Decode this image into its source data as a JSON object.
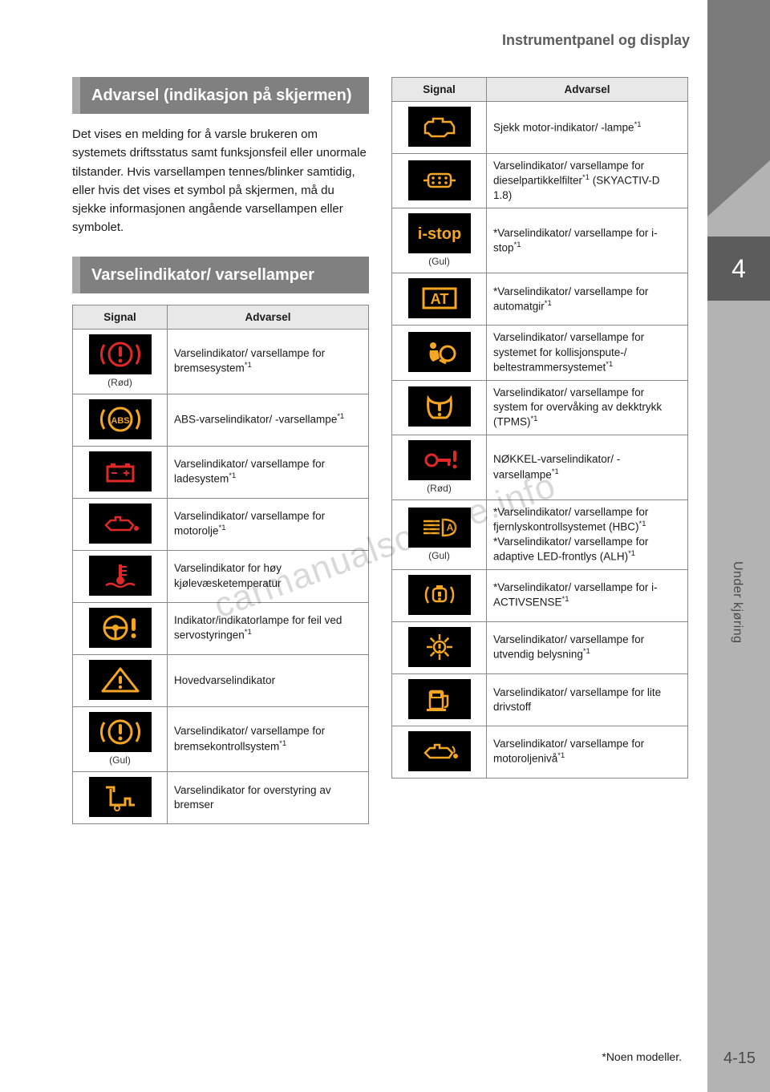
{
  "header": "Instrumentpanel og display",
  "chapter_tab": "4",
  "side_label": "Under kjøring",
  "page_number": "4-15",
  "footnote": "*Noen modeller.",
  "watermark": "carmanualsonline.info",
  "colors": {
    "red": "#e02828",
    "amber": "#f5a623"
  },
  "section1": {
    "title": "Advarsel (indikasjon på skjermen)",
    "text": "Det vises en melding for å varsle brukeren om systemets driftsstatus samt funksjonsfeil eller unormale tilstander. Hvis varsellampen tennes/blinker samtidig, eller hvis det vises et symbol på skjermen, må du sjekke informasjonen angående varsellampen eller symbolet."
  },
  "section2": {
    "title": "Varselindikator/ varsellamper"
  },
  "th_signal": "Signal",
  "th_warn": "Advarsel",
  "left_table": [
    {
      "icon": "brake-red",
      "sub": "(Rød)",
      "text": "Varselindikator/ varsellampe for bremsesystem*¹"
    },
    {
      "icon": "abs",
      "sub": "",
      "text": "ABS-varselindikator/ -varsellampe*¹"
    },
    {
      "icon": "battery",
      "sub": "",
      "text": "Varselindikator/ varsellampe for ladesystem*¹"
    },
    {
      "icon": "oil-red",
      "sub": "",
      "text": "Varselindikator/ varsellampe for motorolje*¹"
    },
    {
      "icon": "temp",
      "sub": "",
      "text": "Varselindikator for høy kjølevæsketemperatur"
    },
    {
      "icon": "steering",
      "sub": "",
      "text": "Indikator/indikatorlampe for feil ved servostyringen*¹"
    },
    {
      "icon": "master",
      "sub": "",
      "text": "Hovedvarselindikator"
    },
    {
      "icon": "brake-amber",
      "sub": "(Gul)",
      "text": "Varselindikator/ varsellampe for bremsekontrollsystem*¹"
    },
    {
      "icon": "brake-override",
      "sub": "",
      "text": "Varselindikator for overstyring av bremser"
    }
  ],
  "right_table": [
    {
      "icon": "engine",
      "sub": "",
      "text": "Sjekk motor-indikator/ -lampe*¹"
    },
    {
      "icon": "dpf",
      "sub": "",
      "text": "Varselindikator/ varsellampe for dieselpartikkelfilter*¹ (SKYACTIV-D 1.8)"
    },
    {
      "icon": "istop",
      "sub": "(Gul)",
      "text": "*Varselindikator/ varsellampe for i-stop*¹"
    },
    {
      "icon": "at",
      "sub": "",
      "text": "*Varselindikator/ varsellampe for automatgir*¹"
    },
    {
      "icon": "airbag",
      "sub": "",
      "text": "Varselindikator/ varsellampe for systemet for kollisjonspute-/ beltestrammersystemet*¹"
    },
    {
      "icon": "tpms",
      "sub": "",
      "text": "Varselindikator/ varsellampe for system for overvåking av dekktrykk (TPMS)*¹"
    },
    {
      "icon": "key-red",
      "sub": "(Rød)",
      "text": "NØKKEL-varselindikator/ -varsellampe*¹"
    },
    {
      "icon": "hbc",
      "sub": "(Gul)",
      "text": "*Varselindikator/ varsellampe for fjernlyskontrollsystemet (HBC)*¹\n*Varselindikator/ varsellampe for adaptive LED-frontlys (ALH)*¹"
    },
    {
      "icon": "iactiv",
      "sub": "",
      "text": "*Varselindikator/ varsellampe for i-ACTIVSENSE*¹"
    },
    {
      "icon": "lights",
      "sub": "",
      "text": "Varselindikator/ varsellampe for utvendig belysning*¹"
    },
    {
      "icon": "fuel",
      "sub": "",
      "text": "Varselindikator/ varsellampe for lite drivstoff"
    },
    {
      "icon": "oil-amber",
      "sub": "",
      "text": "Varselindikator/ varsellampe for motoroljenivå*¹"
    }
  ]
}
